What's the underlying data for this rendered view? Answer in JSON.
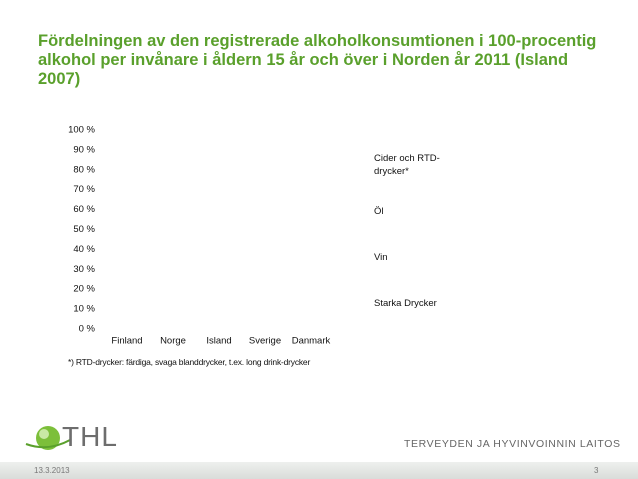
{
  "chart_data": {
    "type": "bar",
    "stacked": true,
    "title": "Fördelningen av den registrerade alkoholkonsumtionen i 100-procentig alkohol per invånare i åldern 15 år och över i Norden år 2011 (Island 2007)",
    "categories": [
      "Finland",
      "Norge",
      "Island",
      "Sverige",
      "Danmark"
    ],
    "series": [
      {
        "name": "Starka Drycker",
        "values": [
          null,
          null,
          null,
          null,
          null
        ]
      },
      {
        "name": "Vin",
        "values": [
          null,
          null,
          null,
          null,
          null
        ]
      },
      {
        "name": "Öl",
        "values": [
          null,
          null,
          null,
          null,
          null
        ]
      },
      {
        "name": "Cider och RTD-drycker*",
        "values": [
          null,
          null,
          null,
          null,
          null
        ]
      }
    ],
    "ylim": [
      0,
      100
    ],
    "yticks": [
      {
        "value": 0,
        "label": "0 %"
      },
      {
        "value": 10,
        "label": "10 %"
      },
      {
        "value": 20,
        "label": "20 %"
      },
      {
        "value": 30,
        "label": "30 %"
      },
      {
        "value": 40,
        "label": "40 %"
      },
      {
        "value": 50,
        "label": "50 %"
      },
      {
        "value": 60,
        "label": "60 %"
      },
      {
        "value": 70,
        "label": "70 %"
      },
      {
        "value": 80,
        "label": "80 %"
      },
      {
        "value": 90,
        "label": "90 %"
      },
      {
        "value": 100,
        "label": "100 %"
      }
    ],
    "grid": false,
    "legend": "right",
    "note": "*) RTD-drycker: färdiga, svaga blanddrycker, t.ex. long drink-drycker"
  },
  "logo": "THL",
  "organization": "TERVEYDEN JA HYVINVOINNIN LAITOS",
  "footer": {
    "date": "13.3.2013",
    "page": "3"
  }
}
